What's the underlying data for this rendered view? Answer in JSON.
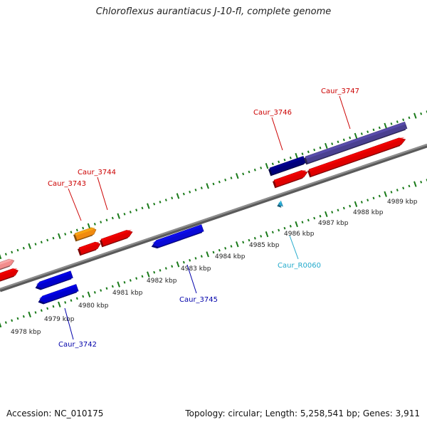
{
  "title": "Chloroflexus aurantiacus J-10-fl, complete genome",
  "footer": {
    "accession": "Accession: NC_010175",
    "stats": "Topology: circular; Length: 5,258,541 bp; Genes: 3,911"
  },
  "colors": {
    "backbone": "#8c8c8c",
    "ticks": "#1a7a1a",
    "label_red": "#cc0000",
    "label_blue": "#0000aa",
    "label_cyan": "#22aacc"
  },
  "tick_labels": [
    "4978 kbp",
    "4979 kbp",
    "4980 kbp",
    "4981 kbp",
    "4982 kbp",
    "4983 kbp",
    "4984 kbp",
    "4985 kbp",
    "4986 kbp",
    "4987 kbp",
    "4988 kbp",
    "4989 kbp"
  ],
  "genes": [
    {
      "name": "",
      "color": "#f28c8c",
      "strand": "forward"
    },
    {
      "name": "",
      "color": "#e00000",
      "strand": "forward"
    },
    {
      "name": "Caur_3742",
      "color": "#0000cc",
      "strand": "reverse"
    },
    {
      "name": "",
      "color": "#0000cc",
      "strand": "reverse"
    },
    {
      "name": "Caur_3743",
      "color": "#f08a10",
      "strand": "forward"
    },
    {
      "name": "",
      "color": "#e00000",
      "strand": "forward"
    },
    {
      "name": "Caur_3744",
      "color": "#e00000",
      "strand": "forward"
    },
    {
      "name": "Caur_3745",
      "color": "#0a0ad6",
      "strand": "reverse"
    },
    {
      "name": "Caur_R0060",
      "color": "#29a8d6",
      "strand": "reverse"
    },
    {
      "name": "Caur_3746",
      "color": "#00007a",
      "strand": "forward"
    },
    {
      "name": "",
      "color": "#e00000",
      "strand": "forward"
    },
    {
      "name": "Caur_3747",
      "color": "#4a4090",
      "strand": "forward"
    },
    {
      "name": "",
      "color": "#e00000",
      "strand": "forward"
    }
  ]
}
